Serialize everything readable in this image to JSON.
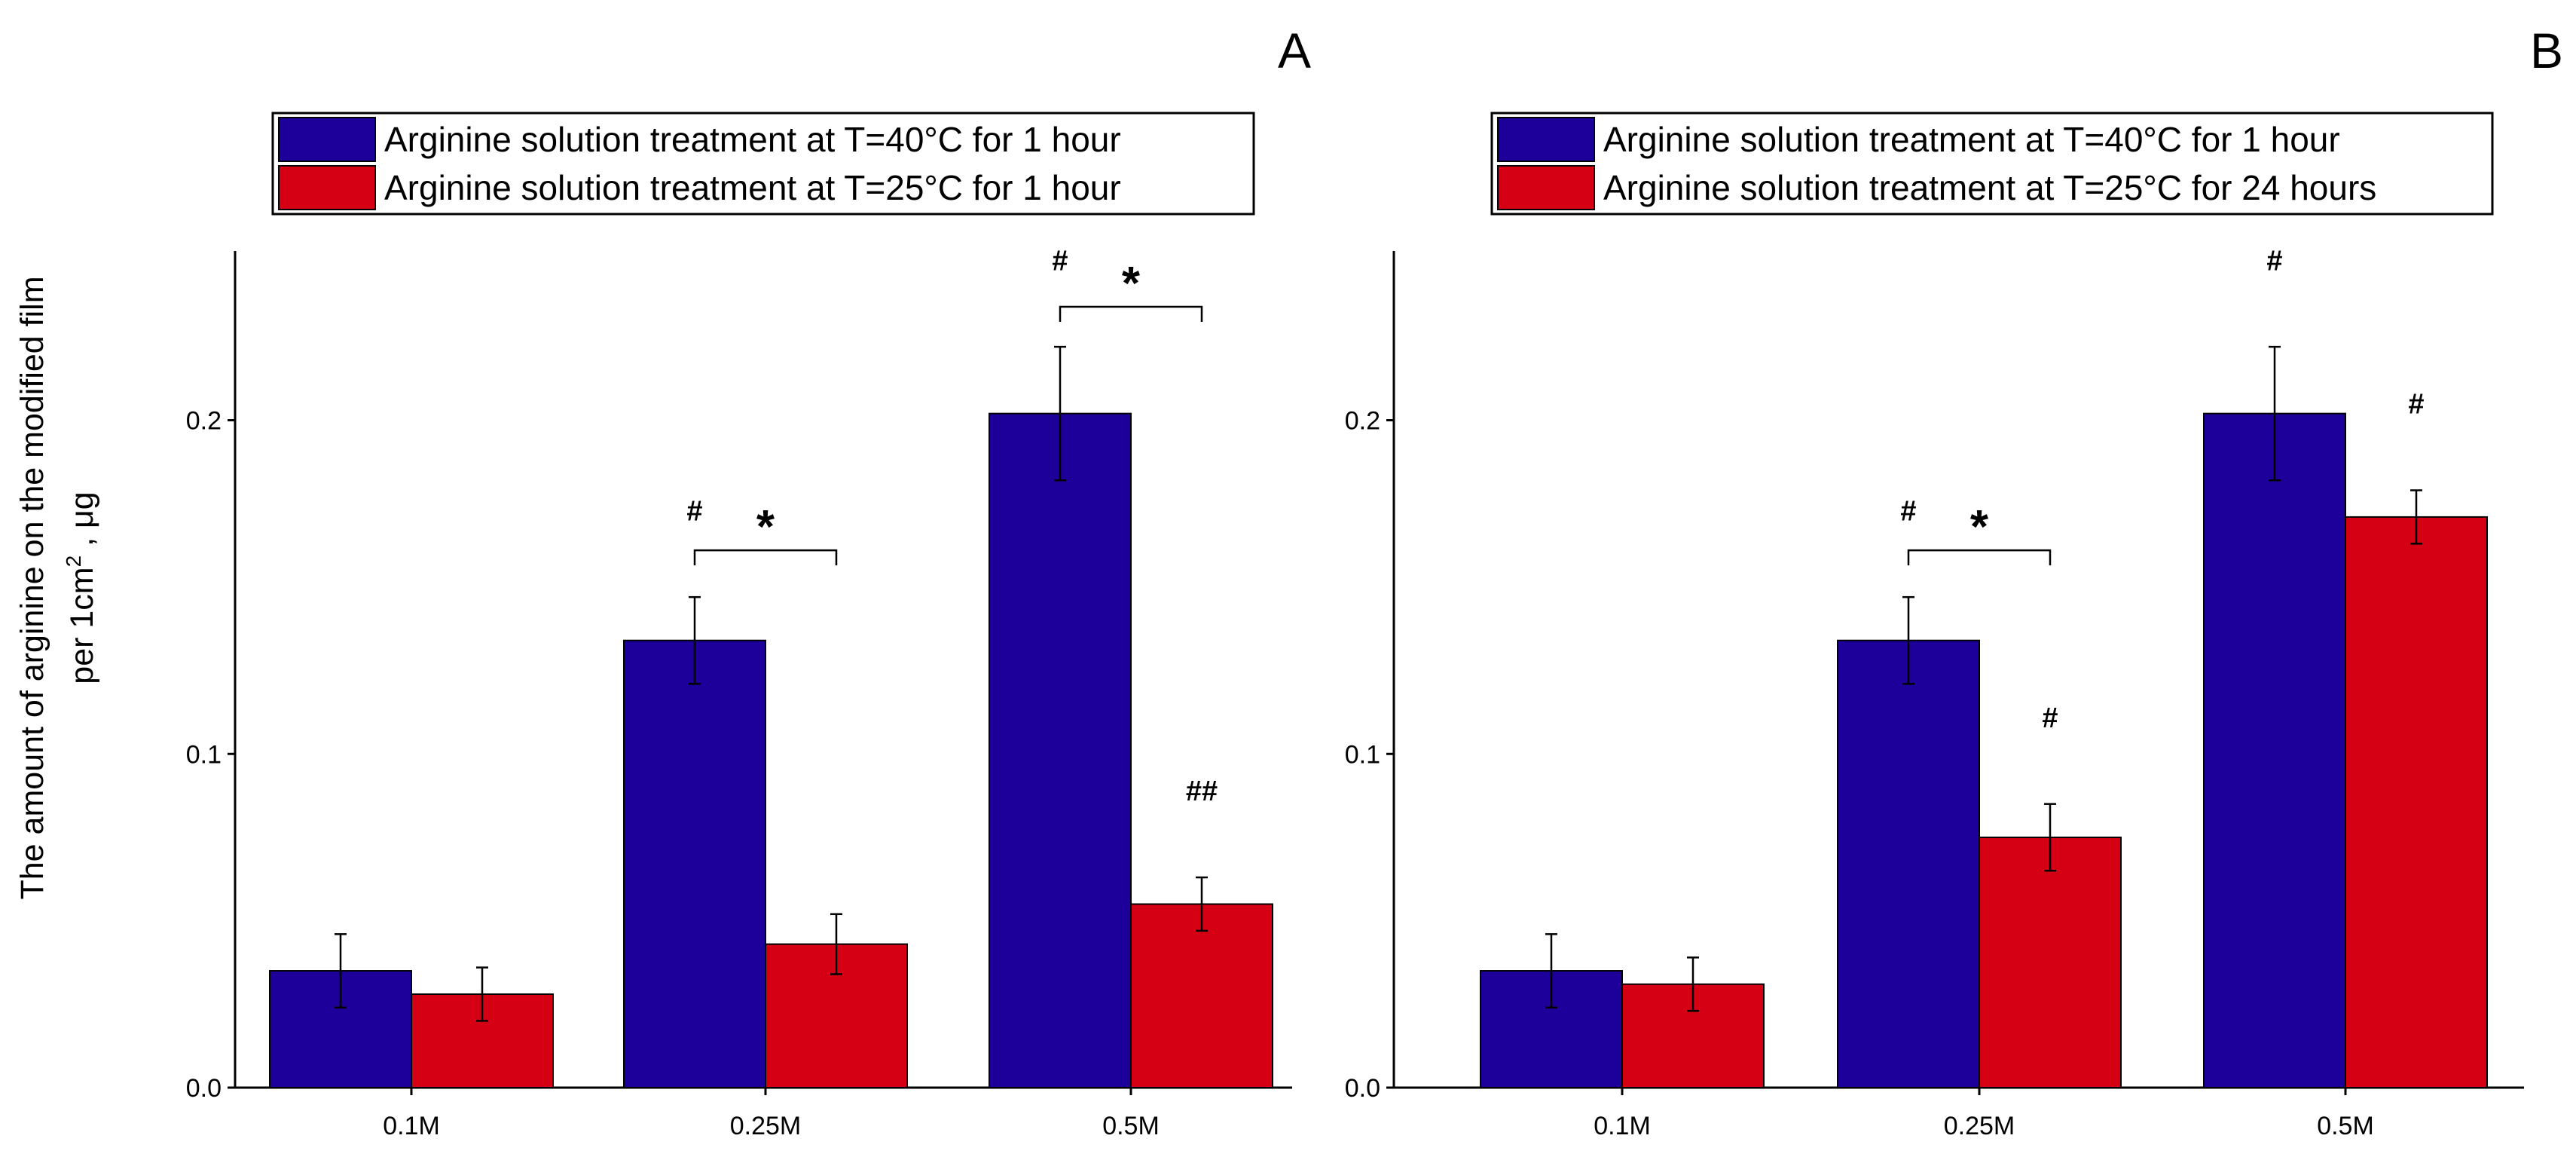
{
  "colors": {
    "series1": "#1c0099",
    "series2": "#d60015",
    "axis": "#000000"
  },
  "y_axis_label": {
    "line1": "The amount of arginine on the modified film",
    "line2_prefix": "per 1cm",
    "line2_sup": "2",
    "line2_suffix": " , μg"
  },
  "chart_data": [
    {
      "type": "bar",
      "panel_label": "A",
      "categories": [
        "0.1M",
        "0.25M",
        "0.5M"
      ],
      "series": [
        {
          "name": "Arginine solution treatment at T=40°C for 1 hour",
          "values": [
            0.035,
            0.134,
            0.202
          ],
          "errors": [
            0.011,
            0.013,
            0.02
          ]
        },
        {
          "name": "Arginine solution treatment at T=25°C for 1 hour",
          "values": [
            0.028,
            0.043,
            0.055
          ],
          "errors": [
            0.008,
            0.009,
            0.008
          ]
        }
      ],
      "ylim": [
        0,
        0.25
      ],
      "yticks": [
        "0.0",
        "0.1",
        "0.2"
      ],
      "annotations": [
        {
          "text": "#",
          "series": 0,
          "category": 1
        },
        {
          "text": "#",
          "series": 0,
          "category": 2
        },
        {
          "text": "##",
          "series": 1,
          "category": 2
        }
      ],
      "brackets": [
        {
          "category": 1,
          "text": "*",
          "y": 0.161
        },
        {
          "category": 2,
          "text": "*",
          "y": 0.234
        }
      ],
      "legend_position": "top"
    },
    {
      "type": "bar",
      "panel_label": "B",
      "categories": [
        "0.1M",
        "0.25M",
        "0.5M"
      ],
      "series": [
        {
          "name": "Arginine solution treatment at T=40°C for 1 hour",
          "values": [
            0.035,
            0.134,
            0.202
          ],
          "errors": [
            0.011,
            0.013,
            0.02
          ]
        },
        {
          "name": "Arginine solution treatment at T=25°C for 24 hours",
          "values": [
            0.031,
            0.075,
            0.171
          ],
          "errors": [
            0.008,
            0.01,
            0.008
          ]
        }
      ],
      "ylim": [
        0,
        0.25
      ],
      "yticks": [
        "0.0",
        "0.1",
        "0.2"
      ],
      "annotations": [
        {
          "text": "#",
          "series": 0,
          "category": 1
        },
        {
          "text": "#",
          "series": 0,
          "category": 2
        },
        {
          "text": "#",
          "series": 1,
          "category": 1
        },
        {
          "text": "#",
          "series": 1,
          "category": 2
        }
      ],
      "brackets": [
        {
          "category": 1,
          "text": "*",
          "y": 0.161
        }
      ],
      "legend_position": "top"
    }
  ]
}
